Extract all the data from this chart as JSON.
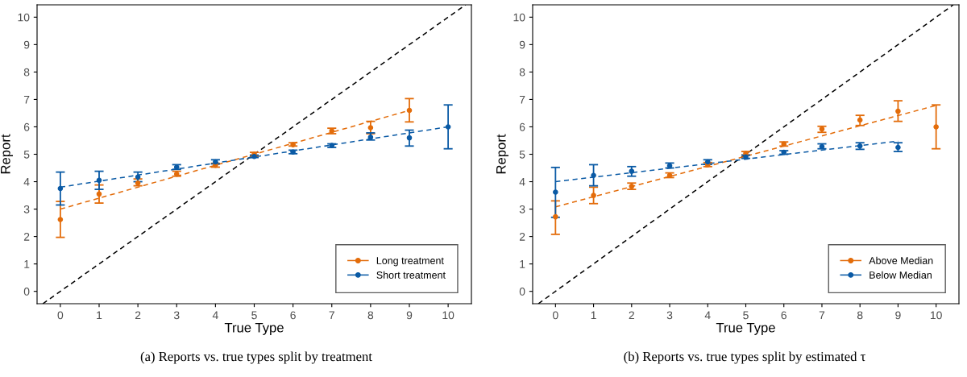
{
  "chart_data": [
    {
      "type": "scatter",
      "xlabel": "True Type",
      "ylabel": "Report",
      "xlim": [
        -0.6,
        10.6
      ],
      "ylim": [
        -0.45,
        10.45
      ],
      "xticks": [
        0,
        1,
        2,
        3,
        4,
        5,
        6,
        7,
        8,
        9,
        10
      ],
      "yticks": [
        0,
        1,
        2,
        3,
        4,
        5,
        6,
        7,
        8,
        9,
        10
      ],
      "grid": false,
      "legend": "bottom right",
      "marker": "circle",
      "annotations": [
        "(a) Reports vs. true types split by treatment"
      ],
      "series": [
        {
          "type": "line",
          "color": "#000000",
          "line_style": "dashed",
          "marker": "none",
          "x": [
            -0.45,
            10.45
          ],
          "values": [
            -0.45,
            10.45
          ]
        },
        {
          "name": "Long treatment",
          "color": "#e36c0a",
          "x": [
            0,
            1,
            2,
            3,
            4,
            5,
            6,
            7,
            8,
            9
          ],
          "values": [
            2.62,
            3.55,
            3.95,
            4.28,
            4.6,
            5.0,
            5.35,
            5.85,
            5.97,
            6.6
          ],
          "errors": [
            [
              1.97,
              3.28
            ],
            [
              3.22,
              3.88
            ],
            [
              3.85,
              4.1
            ],
            [
              4.2,
              4.38
            ],
            [
              4.53,
              4.67
            ],
            [
              4.93,
              5.07
            ],
            [
              5.3,
              5.42
            ],
            [
              5.75,
              5.95
            ],
            [
              5.75,
              6.2
            ],
            [
              6.18,
              7.03
            ]
          ]
        },
        {
          "name": "Short treatment",
          "color": "#0a5aa5",
          "x": [
            0,
            1,
            2,
            3,
            4,
            5,
            6,
            7,
            8,
            9,
            10
          ],
          "values": [
            3.75,
            4.05,
            4.17,
            4.53,
            4.72,
            4.92,
            5.08,
            5.32,
            5.62,
            5.6,
            6.0
          ],
          "errors": [
            [
              3.15,
              4.35
            ],
            [
              3.72,
              4.38
            ],
            [
              4.0,
              4.35
            ],
            [
              4.45,
              4.62
            ],
            [
              4.65,
              4.8
            ],
            [
              4.88,
              4.97
            ],
            [
              5.02,
              5.15
            ],
            [
              5.25,
              5.38
            ],
            [
              5.52,
              5.78
            ],
            [
              5.3,
              5.88
            ],
            [
              5.2,
              6.8
            ]
          ]
        },
        {
          "type": "line",
          "color": "#e36c0a",
          "line_style": "dashed",
          "marker": "none",
          "x": [
            0,
            9
          ],
          "values": [
            3.0,
            6.6
          ]
        },
        {
          "type": "line",
          "color": "#0a5aa5",
          "line_style": "dashed",
          "marker": "none",
          "x": [
            0,
            10
          ],
          "values": [
            3.8,
            6.0
          ]
        }
      ]
    },
    {
      "type": "scatter",
      "xlabel": "True Type",
      "ylabel": "Report",
      "xlim": [
        -0.6,
        10.6
      ],
      "ylim": [
        -0.45,
        10.45
      ],
      "xticks": [
        0,
        1,
        2,
        3,
        4,
        5,
        6,
        7,
        8,
        9,
        10
      ],
      "yticks": [
        0,
        1,
        2,
        3,
        4,
        5,
        6,
        7,
        8,
        9,
        10
      ],
      "grid": false,
      "legend": "bottom right",
      "marker": "circle",
      "annotations": [
        "(b) Reports vs. true types split by estimated τ"
      ],
      "series": [
        {
          "type": "line",
          "color": "#000000",
          "line_style": "dashed",
          "marker": "none",
          "x": [
            -0.45,
            10.45
          ],
          "values": [
            -0.45,
            10.45
          ]
        },
        {
          "name": "Above Median",
          "color": "#e36c0a",
          "x": [
            0,
            1,
            2,
            3,
            4,
            5,
            6,
            7,
            8,
            9,
            10
          ],
          "values": [
            2.72,
            3.5,
            3.83,
            4.23,
            4.62,
            5.03,
            5.37,
            5.92,
            6.25,
            6.57,
            6.0
          ],
          "errors": [
            [
              2.08,
              3.3
            ],
            [
              3.2,
              3.8
            ],
            [
              3.72,
              3.95
            ],
            [
              4.15,
              4.32
            ],
            [
              4.55,
              4.7
            ],
            [
              4.97,
              5.1
            ],
            [
              5.3,
              5.45
            ],
            [
              5.8,
              6.02
            ],
            [
              6.05,
              6.42
            ],
            [
              6.2,
              6.95
            ],
            [
              5.2,
              6.8
            ]
          ]
        },
        {
          "name": "Below Median",
          "color": "#0a5aa5",
          "x": [
            0,
            1,
            2,
            3,
            4,
            5,
            6,
            7,
            8,
            9
          ],
          "values": [
            3.62,
            4.23,
            4.38,
            4.58,
            4.72,
            4.9,
            5.07,
            5.28,
            5.3,
            5.25
          ],
          "errors": [
            [
              2.7,
              4.52
            ],
            [
              3.85,
              4.62
            ],
            [
              4.2,
              4.55
            ],
            [
              4.5,
              4.68
            ],
            [
              4.63,
              4.8
            ],
            [
              4.85,
              4.97
            ],
            [
              5.0,
              5.13
            ],
            [
              5.2,
              5.38
            ],
            [
              5.18,
              5.42
            ],
            [
              5.1,
              5.42
            ]
          ]
        },
        {
          "type": "line",
          "color": "#e36c0a",
          "line_style": "dashed",
          "marker": "none",
          "x": [
            0,
            10
          ],
          "values": [
            3.08,
            6.78
          ]
        },
        {
          "type": "line",
          "color": "#0a5aa5",
          "line_style": "dashed",
          "marker": "none",
          "x": [
            0,
            9
          ],
          "values": [
            4.0,
            5.48
          ]
        }
      ]
    }
  ]
}
